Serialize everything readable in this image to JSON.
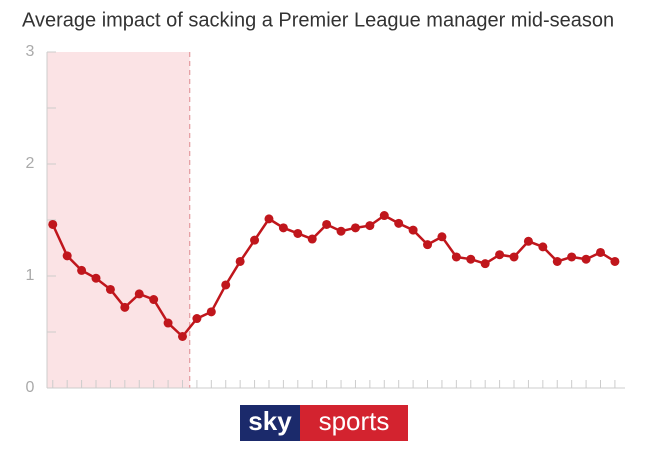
{
  "chart_data": {
    "type": "line",
    "title": "Average impact of sacking a Premier League manager mid-season",
    "x": [
      1,
      2,
      3,
      4,
      5,
      6,
      7,
      8,
      9,
      10,
      11,
      12,
      13,
      14,
      15,
      16,
      17,
      18,
      19,
      20,
      21,
      22,
      23,
      24,
      25,
      26,
      27,
      28,
      29,
      30,
      31,
      32,
      33,
      34,
      35,
      36,
      37,
      38,
      39,
      40
    ],
    "series": [
      {
        "color": "#c0161c",
        "values": [
          1.46,
          1.18,
          1.05,
          0.98,
          0.88,
          0.72,
          0.84,
          0.79,
          0.58,
          0.46,
          0.62,
          0.68,
          0.92,
          1.13,
          1.32,
          1.51,
          1.43,
          1.38,
          1.33,
          1.46,
          1.4,
          1.43,
          1.45,
          1.54,
          1.47,
          1.41,
          1.28,
          1.35,
          1.17,
          1.15,
          1.11,
          1.19,
          1.17,
          1.31,
          1.26,
          1.13,
          1.17,
          1.15,
          1.21,
          1.13
        ]
      }
    ],
    "xlim": [
      0.6,
      40.7
    ],
    "xticks": [
      1,
      2,
      3,
      4,
      5,
      6,
      7,
      8,
      9,
      10,
      11,
      12,
      13,
      14,
      15,
      16,
      17,
      18,
      19,
      20,
      21,
      22,
      23,
      24,
      25,
      26,
      27,
      28,
      29,
      30,
      31,
      32,
      33,
      34,
      35,
      36,
      37,
      38,
      39,
      40
    ],
    "ylim": [
      0,
      3
    ],
    "yticks": [
      0,
      1,
      2,
      3
    ],
    "yminorticks": [
      0.5,
      1.5,
      2.5
    ],
    "shaded_xrange": [
      0.6,
      10.5
    ],
    "shade_color": "#fbe3e5"
  },
  "logo": {
    "sky": "sky",
    "sports": "sports"
  }
}
